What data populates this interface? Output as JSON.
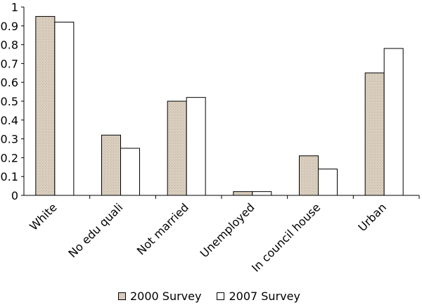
{
  "chart_data": {
    "type": "bar",
    "title": "",
    "xlabel": "",
    "ylabel": "",
    "ylim": [
      0,
      1
    ],
    "yticks": [
      "0",
      "0.1",
      "0.2",
      "0.3",
      "0.4",
      "0.5",
      "0.6",
      "0.7",
      "0.8",
      "0.9",
      "1"
    ],
    "categories": [
      "White",
      "No edu quali",
      "Not married",
      "Unemployed",
      "In council house",
      "Urban"
    ],
    "series": [
      {
        "name": "2000 Survey",
        "values": [
          0.95,
          0.32,
          0.5,
          0.02,
          0.21,
          0.65
        ],
        "color": "#d8cdbd"
      },
      {
        "name": "2007 Survey",
        "values": [
          0.92,
          0.25,
          0.52,
          0.02,
          0.14,
          0.78
        ],
        "color": "#ffffff"
      }
    ],
    "grid": false,
    "legend_position": "bottom"
  }
}
